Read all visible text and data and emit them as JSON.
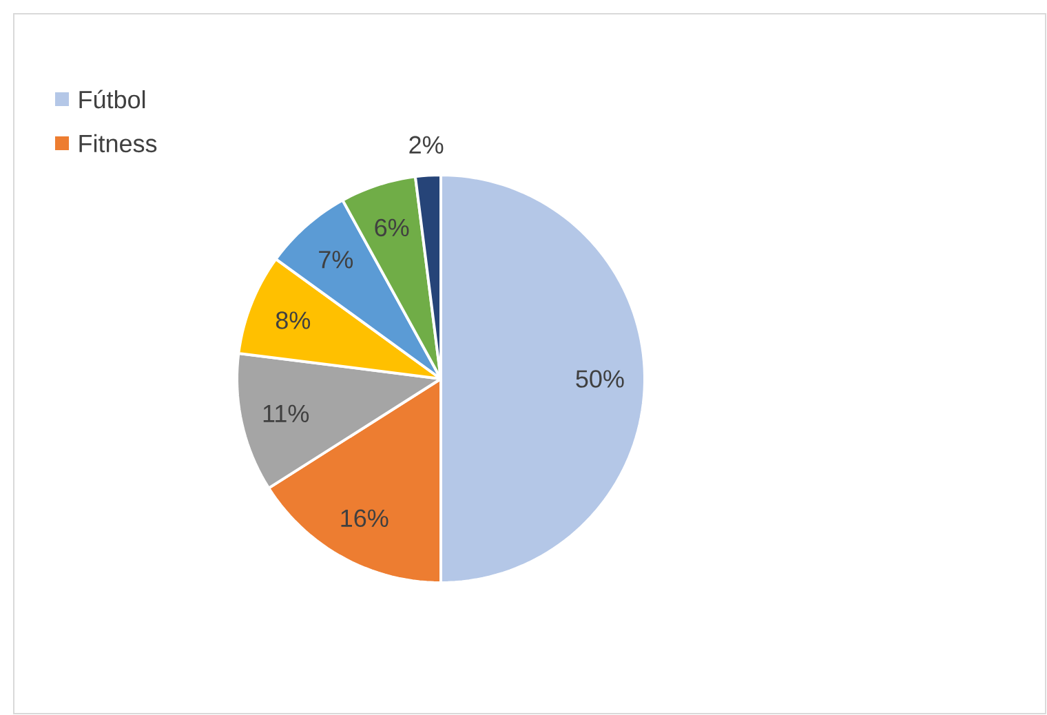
{
  "chart_data": {
    "type": "pie",
    "categories": [
      "Fútbol",
      "Fitness",
      null,
      null,
      null,
      null,
      null
    ],
    "values": [
      50,
      16,
      11,
      8,
      7,
      6,
      2
    ],
    "value_labels": [
      "50%",
      "16%",
      "11%",
      "8%",
      "7%",
      "6%",
      "2%"
    ],
    "colors": [
      "#b4c7e7",
      "#ed7d31",
      "#a5a5a5",
      "#ffc000",
      "#5b9bd5",
      "#70ad47",
      "#264478"
    ],
    "legend": "top left"
  }
}
